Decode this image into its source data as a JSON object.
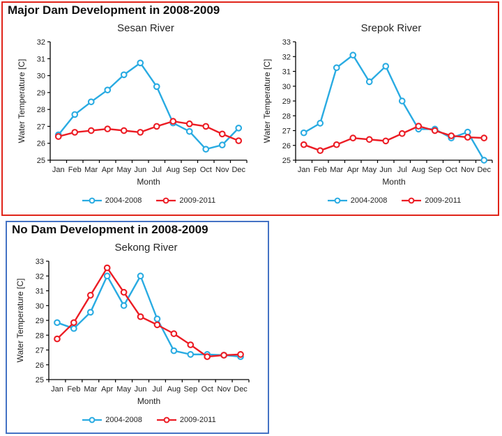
{
  "colors": {
    "series_2004_2008": "#29abe2",
    "series_2009_2011": "#ec1c24",
    "red_box_border": "#e02419",
    "blue_box_border": "#4472c4",
    "axis": "#000000",
    "text": "#1f1f1f"
  },
  "red_section": {
    "title": "Major Dam Development in 2008-2009"
  },
  "blue_section": {
    "title": "No Dam Development in 2008-2009"
  },
  "chart_data": [
    {
      "type": "line",
      "title": "Sesan River",
      "xlabel": "Month",
      "ylabel": "Water Temperature [C]",
      "ylim": [
        25,
        32
      ],
      "ytick_step": 1,
      "grid": false,
      "legend_position": "bottom",
      "categories": [
        "Jan",
        "Feb",
        "Mar",
        "Apr",
        "May",
        "Jun",
        "Jul",
        "Aug",
        "Sep",
        "Oct",
        "Nov",
        "Dec"
      ],
      "series": [
        {
          "name": "2004-2008",
          "color": "#29abe2",
          "values": [
            26.5,
            27.7,
            28.45,
            29.15,
            30.05,
            30.75,
            29.35,
            27.2,
            26.7,
            25.65,
            25.9,
            26.9
          ]
        },
        {
          "name": "2009-2011",
          "color": "#ec1c24",
          "values": [
            26.4,
            26.65,
            26.75,
            26.85,
            26.75,
            26.65,
            27.0,
            27.3,
            27.15,
            27.0,
            26.55,
            26.15
          ]
        }
      ]
    },
    {
      "type": "line",
      "title": "Srepok River",
      "xlabel": "Month",
      "ylabel": "Water Temperature [C]",
      "ylim": [
        25,
        33
      ],
      "ytick_step": 1,
      "grid": false,
      "legend_position": "bottom",
      "categories": [
        "Jan",
        "Feb",
        "Mar",
        "Apr",
        "May",
        "Jun",
        "Jul",
        "Aug",
        "Sep",
        "Oct",
        "Nov",
        "Dec"
      ],
      "series": [
        {
          "name": "2004-2008",
          "color": "#29abe2",
          "values": [
            26.85,
            27.5,
            31.25,
            32.1,
            30.3,
            31.35,
            29.0,
            27.1,
            27.1,
            26.5,
            26.9,
            25.0
          ]
        },
        {
          "name": "2009-2011",
          "color": "#ec1c24",
          "values": [
            26.05,
            25.65,
            26.05,
            26.5,
            26.4,
            26.3,
            26.8,
            27.3,
            27.0,
            26.65,
            26.55,
            26.5
          ]
        }
      ]
    },
    {
      "type": "line",
      "title": "Sekong River",
      "xlabel": "Month",
      "ylabel": "Water Temperature [C]",
      "ylim": [
        25,
        33
      ],
      "ytick_step": 1,
      "grid": false,
      "legend_position": "bottom",
      "categories": [
        "Jan",
        "Feb",
        "Mar",
        "Apr",
        "May",
        "Jun",
        "Jul",
        "Aug",
        "Sep",
        "Oct",
        "Nov",
        "Dec"
      ],
      "series": [
        {
          "name": "2004-2008",
          "color": "#29abe2",
          "values": [
            28.85,
            28.45,
            29.55,
            32.0,
            30.0,
            32.0,
            29.1,
            26.95,
            26.7,
            26.7,
            26.65,
            26.55
          ]
        },
        {
          "name": "2009-2011",
          "color": "#ec1c24",
          "values": [
            27.75,
            28.85,
            30.7,
            32.55,
            30.9,
            29.25,
            28.7,
            28.1,
            27.35,
            26.55,
            26.65,
            26.7
          ]
        }
      ]
    }
  ]
}
